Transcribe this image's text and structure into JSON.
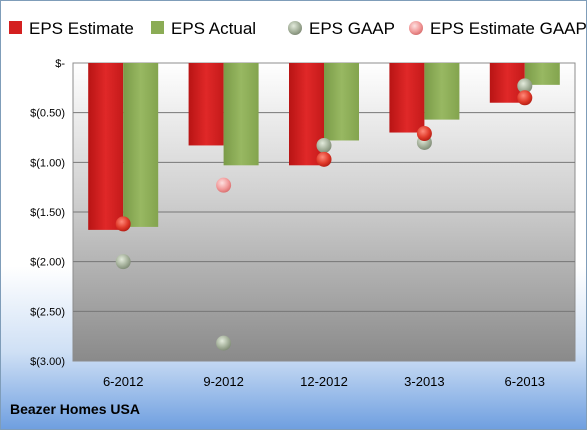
{
  "company": "Beazer Homes USA",
  "chart_data": {
    "type": "bar",
    "categories": [
      "6-2012",
      "9-2012",
      "12-2012",
      "3-2013",
      "6-2013"
    ],
    "series": [
      {
        "name": "EPS Estimate",
        "kind": "bar",
        "color": "#d42020",
        "values": [
          -1.68,
          -0.83,
          -1.03,
          -0.7,
          -0.4
        ]
      },
      {
        "name": "EPS Actual",
        "kind": "bar",
        "color": "#8bac55",
        "values": [
          -1.65,
          -1.03,
          -0.78,
          -0.57,
          -0.22
        ]
      },
      {
        "name": "EPS GAAP",
        "kind": "marker",
        "color": "#9aa892",
        "values": [
          -2.0,
          -2.82,
          -0.83,
          -0.8,
          -0.23
        ]
      },
      {
        "name": "EPS Estimate GAAP",
        "kind": "marker",
        "color": "#f08f8f",
        "values": [
          -1.62,
          -1.23,
          -0.97,
          -0.71,
          -0.35
        ]
      }
    ],
    "yticks": [
      0,
      -0.5,
      -1.0,
      -1.5,
      -2.0,
      -2.5,
      -3.0
    ],
    "ytick_labels": [
      "$-",
      "$(0.50)",
      "$(1.00)",
      "$(1.50)",
      "$(2.00)",
      "$(2.50)",
      "$(3.00)"
    ],
    "ylim": [
      -3.0,
      0
    ],
    "grid": true,
    "legend_position": "top"
  }
}
